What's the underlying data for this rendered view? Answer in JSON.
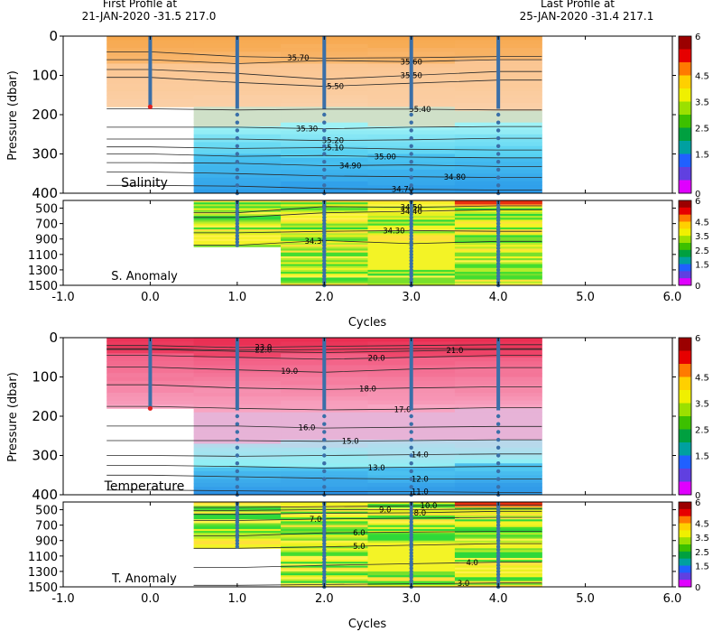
{
  "header": {
    "first_label": "First Profile at",
    "first_value": "21-JAN-2020   -31.5  217.0",
    "last_label": "Last Profile at",
    "last_value": "25-JAN-2020   -31.4  217.1"
  },
  "colorbar": {
    "ticks": [
      "6",
      "4.5",
      "3.5",
      "2.5",
      "1.5",
      "0"
    ],
    "colors": [
      "#9b0000",
      "#e60000",
      "#ff7a00",
      "#ffd000",
      "#f0f000",
      "#9be000",
      "#3cc000",
      "#00a040",
      "#00a0a0",
      "#2060ff",
      "#6040e0",
      "#e000ff"
    ]
  },
  "axes": {
    "xlabel": "Cycles",
    "ylabel": "Pressure (dbar)",
    "xticks": [
      "-1.0",
      "0.0",
      "1.0",
      "2.0",
      "3.0",
      "4.0",
      "5.0",
      "6.0"
    ],
    "yticks_top": [
      "0",
      "100",
      "200",
      "300",
      "400"
    ],
    "yticks_bottom": [
      "500",
      "700",
      "900",
      "1100",
      "1300",
      "1500"
    ]
  },
  "panels": {
    "salinity": {
      "title": "Salinity"
    },
    "s_anomaly": {
      "title": "S. Anomaly"
    },
    "temperature": {
      "title": "Temperature"
    },
    "t_anomaly": {
      "title": "T. Anomaly"
    }
  },
  "chart_data": [
    {
      "type": "heatmap",
      "title": "Salinity",
      "xlabel": "Cycles",
      "ylabel": "Pressure (dbar)",
      "xlim": [
        -1.0,
        6.0
      ],
      "ylim": [
        400,
        0
      ],
      "cycles": [
        0,
        1,
        2,
        3,
        4
      ],
      "profile_bottom_dbar": [
        180,
        400,
        400,
        400,
        400
      ],
      "contours": [
        {
          "label": "35.70",
          "p": [
            40,
            52,
            56,
            55,
            52
          ],
          "label_x": 1.7
        },
        {
          "label": "35.60",
          "p": [
            60,
            70,
            62,
            65,
            60
          ],
          "label_x": 3.0
        },
        {
          "label": "35.50",
          "p": [
            85,
            95,
            110,
            100,
            90
          ],
          "label_x": 3.0
        },
        {
          "label": "35.50",
          "p": [
            105,
            118,
            128,
            120,
            112
          ],
          "label_x": 2.1
        },
        {
          "label": "35.40",
          "p": [
            185,
            188,
            186,
            186,
            188
          ],
          "label_x": 3.1
        },
        {
          "label": "35.30",
          "p": [
            232,
            232,
            236,
            232,
            230
          ],
          "label_x": 1.8
        },
        {
          "label": "35.20",
          "p": [
            262,
            262,
            266,
            264,
            260
          ],
          "label_x": 2.1
        },
        {
          "label": "35.10",
          "p": [
            282,
            286,
            284,
            288,
            290
          ],
          "label_x": 2.1
        },
        {
          "label": "35.00",
          "p": [
            300,
            306,
            304,
            308,
            310
          ],
          "label_x": 2.7
        },
        {
          "label": "34.90",
          "p": [
            322,
            324,
            330,
            328,
            332
          ],
          "label_x": 2.3
        },
        {
          "label": "34.80",
          "p": [
            346,
            350,
            356,
            358,
            360
          ],
          "label_x": 3.5
        },
        {
          "label": "34.70",
          "p": [
            380,
            382,
            388,
            390,
            392
          ],
          "label_x": 2.9
        }
      ]
    },
    {
      "type": "heatmap",
      "title": "S. Anomaly",
      "xlim": [
        -1.0,
        6.0
      ],
      "ylim": [
        1500,
        400
      ],
      "cycles": [
        1,
        2,
        3,
        4
      ],
      "contours": [
        {
          "label": "34.50",
          "p": [
            560,
            480,
            490,
            470
          ],
          "label_x": 3.0
        },
        {
          "label": "34.40",
          "p": [
            620,
            560,
            540,
            520
          ],
          "label_x": 3.0
        },
        {
          "label": "34.30",
          "p": [
            820,
            800,
            790,
            800
          ],
          "label_x": 2.8
        },
        {
          "label": "34.30",
          "p": [
            980,
            920,
            960,
            930
          ],
          "label_x": 1.9
        }
      ]
    },
    {
      "type": "heatmap",
      "title": "Temperature",
      "xlabel": "Cycles",
      "ylabel": "Pressure (dbar)",
      "xlim": [
        -1.0,
        6.0
      ],
      "ylim": [
        400,
        0
      ],
      "cycles": [
        0,
        1,
        2,
        3,
        4
      ],
      "profile_bottom_dbar": [
        180,
        400,
        400,
        400,
        400
      ],
      "contours": [
        {
          "label": "23.0",
          "p": [
            20,
            25,
            22,
            20,
            18
          ],
          "label_x": 1.3
        },
        {
          "label": "22.0",
          "p": [
            28,
            32,
            30,
            28,
            28
          ],
          "label_x": 1.3
        },
        {
          "label": "21.0",
          "p": [
            30,
            35,
            38,
            34,
            30
          ],
          "label_x": 3.5
        },
        {
          "label": "20.0",
          "p": [
            45,
            50,
            55,
            50,
            45
          ],
          "label_x": 2.6
        },
        {
          "label": "19.0",
          "p": [
            75,
            82,
            88,
            80,
            76
          ],
          "label_x": 1.6
        },
        {
          "label": "18.0",
          "p": [
            120,
            128,
            132,
            128,
            125
          ],
          "label_x": 2.5
        },
        {
          "label": "17.0",
          "p": [
            175,
            180,
            184,
            182,
            178
          ],
          "label_x": 2.9
        },
        {
          "label": "16.0",
          "p": [
            225,
            225,
            230,
            228,
            226
          ],
          "label_x": 1.8
        },
        {
          "label": "15.0",
          "p": [
            262,
            262,
            264,
            262,
            260
          ],
          "label_x": 2.3
        },
        {
          "label": "14.0",
          "p": [
            300,
            302,
            300,
            298,
            296
          ],
          "label_x": 3.1
        },
        {
          "label": "13.0",
          "p": [
            325,
            328,
            332,
            330,
            328
          ],
          "label_x": 2.6
        },
        {
          "label": "12.0",
          "p": [
            350,
            354,
            358,
            360,
            360
          ],
          "label_x": 3.1
        },
        {
          "label": "11.0",
          "p": [
            388,
            390,
            392,
            392,
            394
          ],
          "label_x": 3.1
        }
      ]
    },
    {
      "type": "heatmap",
      "title": "T. Anomaly",
      "xlim": [
        -1.0,
        6.0
      ],
      "ylim": [
        1500,
        400
      ],
      "cycles": [
        1,
        2,
        3,
        4
      ],
      "contours": [
        {
          "label": "10.0",
          "p": [
            470,
            460,
            450,
            440
          ],
          "label_x": 3.2
        },
        {
          "label": "9.0",
          "p": [
            510,
            500,
            500,
            490
          ],
          "label_x": 2.7
        },
        {
          "label": "8.0",
          "p": [
            560,
            545,
            540,
            520
          ],
          "label_x": 3.1
        },
        {
          "label": "7.0",
          "p": [
            640,
            620,
            610,
            600
          ],
          "label_x": 1.9
        },
        {
          "label": "6.0",
          "p": [
            840,
            800,
            790,
            780
          ],
          "label_x": 2.4
        },
        {
          "label": "5.0",
          "p": [
            1000,
            980,
            960,
            940
          ],
          "label_x": 2.4
        },
        {
          "label": "4.0",
          "p": [
            1250,
            1220,
            1200,
            1180
          ],
          "label_x": 3.7
        },
        {
          "label": "3.0",
          "p": [
            1480,
            1470,
            1460,
            1450
          ],
          "label_x": 3.6
        }
      ]
    }
  ]
}
